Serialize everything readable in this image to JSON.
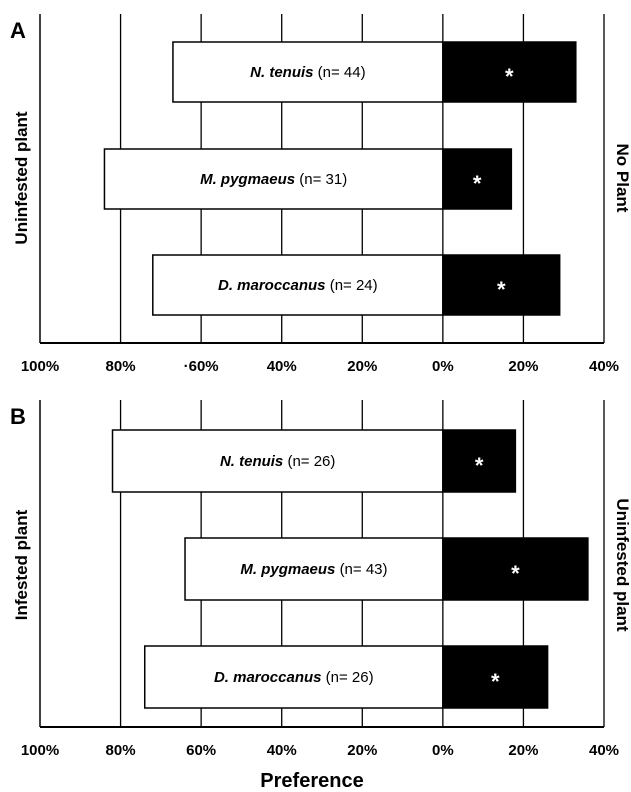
{
  "chart_data": [
    {
      "type": "bar",
      "orientation": "horizontal",
      "stacked": "diverging",
      "panel": "A",
      "left_label": "Uninfested plant",
      "right_label": "No Plant",
      "xlim": [
        -100,
        40
      ],
      "xticks": [
        -100,
        -80,
        -60,
        -40,
        -20,
        0,
        20,
        40
      ],
      "xtick_labels": [
        "100%",
        "80%",
        "·60%",
        "40%",
        "20%",
        "0%",
        "20%",
        "40%"
      ],
      "grid": "vertical",
      "categories": [
        {
          "species": "N. tenuis",
          "n": "(n= 44)",
          "left": 67,
          "right": 33,
          "significance": "*"
        },
        {
          "species": "M. pygmaeus",
          "n": "(n= 31)",
          "left": 84,
          "right": 17,
          "significance": "*"
        },
        {
          "species": "D. maroccanus",
          "n": "(n= 24)",
          "left": 72,
          "right": 29,
          "significance": "*"
        }
      ],
      "colors": {
        "left": "#ffffff",
        "right": "#000000"
      }
    },
    {
      "type": "bar",
      "orientation": "horizontal",
      "stacked": "diverging",
      "panel": "B",
      "left_label": "Infested plant",
      "right_label": "Uninfested plant",
      "xlim": [
        -100,
        40
      ],
      "xticks": [
        -100,
        -80,
        -60,
        -40,
        -20,
        0,
        20,
        40
      ],
      "xtick_labels": [
        "100%",
        "80%",
        "60%",
        "40%",
        "20%",
        "0%",
        "20%",
        "40%"
      ],
      "xlabel": "Preference",
      "grid": "vertical",
      "categories": [
        {
          "species": "N. tenuis",
          "n": "(n= 26)",
          "left": 82,
          "right": 18,
          "significance": "*"
        },
        {
          "species": "M. pygmaeus",
          "n": "(n= 43)",
          "left": 64,
          "right": 36,
          "significance": "*"
        },
        {
          "species": "D. maroccanus",
          "n": "(n= 26)",
          "left": 74,
          "right": 26,
          "significance": "*"
        }
      ],
      "colors": {
        "left": "#ffffff",
        "right": "#000000"
      }
    }
  ]
}
